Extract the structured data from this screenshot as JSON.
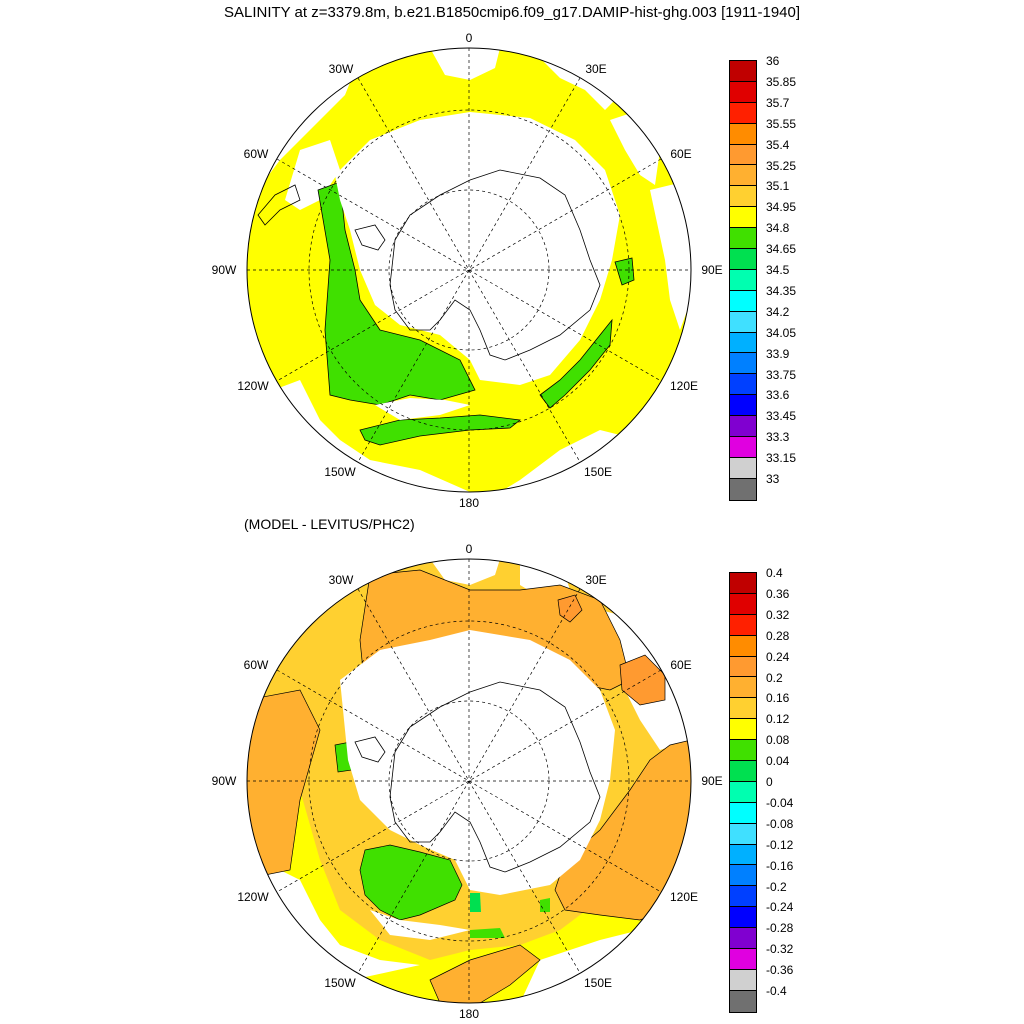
{
  "title": "SALINITY at z=3379.8m, b.e21.B1850cmip6.f09_g17.DAMIP-hist-ghg.003 [1911-1940]",
  "subtitle": "(MODEL - LEVITUS/PHC2)",
  "map_labels": {
    "lon_0": "0",
    "lon_30e": "30E",
    "lon_60e": "60E",
    "lon_90e": "90E",
    "lon_120e": "120E",
    "lon_150e": "150E",
    "lon_180": "180",
    "lon_150w": "150W",
    "lon_120w": "120W",
    "lon_90w": "90W",
    "lon_60w": "60W",
    "lon_30w": "30W"
  },
  "colorbar_top": {
    "labels": [
      "36",
      "35.85",
      "35.7",
      "35.55",
      "35.4",
      "35.25",
      "35.1",
      "34.95",
      "34.8",
      "34.65",
      "34.5",
      "34.35",
      "34.2",
      "34.05",
      "33.9",
      "33.75",
      "33.6",
      "33.45",
      "33.3",
      "33.15",
      "33"
    ],
    "colors": [
      "#c00000",
      "#e00000",
      "#ff2000",
      "#ff8c00",
      "#ff9a30",
      "#ffb030",
      "#ffd030",
      "#ffff00",
      "#40e000",
      "#00e050",
      "#00ffb0",
      "#00ffff",
      "#40e0ff",
      "#00b0ff",
      "#0080ff",
      "#0040ff",
      "#0000ff",
      "#8000d0",
      "#e000e0",
      "#d0d0d0",
      "#707070"
    ]
  },
  "colorbar_bottom": {
    "labels": [
      "0.4",
      "0.36",
      "0.32",
      "0.28",
      "0.24",
      "0.2",
      "0.16",
      "0.12",
      "0.08",
      "0.04",
      "0",
      "-0.04",
      "-0.08",
      "-0.12",
      "-0.16",
      "-0.2",
      "-0.24",
      "-0.28",
      "-0.32",
      "-0.36",
      "-0.4"
    ],
    "colors": [
      "#c00000",
      "#e00000",
      "#ff2000",
      "#ff8c00",
      "#ff9a30",
      "#ffb030",
      "#ffd030",
      "#ffff00",
      "#40e000",
      "#00e050",
      "#00ffb0",
      "#00ffff",
      "#40e0ff",
      "#00b0ff",
      "#0080ff",
      "#0040ff",
      "#0000ff",
      "#8000d0",
      "#e000e0",
      "#d0d0d0",
      "#707070"
    ]
  },
  "colors": {
    "yellow": "#ffff00",
    "green": "#40e000",
    "orange": "#ffb030",
    "lightorange": "#ffd030",
    "darkorange": "#ff9a30",
    "mint": "#00e050",
    "land": "#ffffff"
  }
}
